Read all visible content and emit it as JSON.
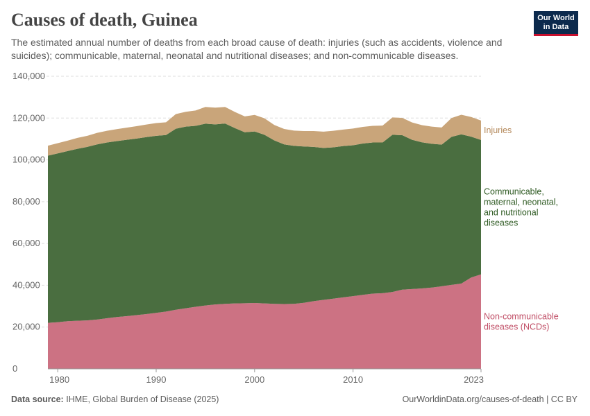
{
  "header": {
    "title": "Causes of death, Guinea",
    "subtitle": "The estimated annual number of deaths from each broad cause of death: injuries (such as accidents, violence and suicides); communicable, maternal, neonatal and nutritional diseases; and non-communicable diseases.",
    "logo_line1": "Our World",
    "logo_line2": "in Data"
  },
  "footer": {
    "source_label": "Data source:",
    "source_text": "IHME, Global Burden of Disease (2025)",
    "url": "OurWorldinData.org/causes-of-death | CC BY"
  },
  "colors": {
    "ncd": "#cc7283",
    "communicable": "#4a6e40",
    "injuries": "#c9a57a",
    "injuries_label": "#b4885a",
    "communicable_label": "#2e5a22",
    "ncd_label": "#c04d65"
  },
  "chart_data": {
    "type": "area",
    "stacked": true,
    "title": "Causes of death, Guinea",
    "xlabel": "",
    "ylabel": "",
    "xlim": [
      1979,
      2023
    ],
    "ylim": [
      0,
      140000
    ],
    "x_ticks": [
      1980,
      1990,
      2000,
      2010,
      2023
    ],
    "y_ticks": [
      0,
      20000,
      40000,
      60000,
      80000,
      100000,
      120000,
      140000
    ],
    "y_tick_labels": [
      "0",
      "20,000",
      "40,000",
      "60,000",
      "80,000",
      "100,000",
      "120,000",
      "140,000"
    ],
    "x": [
      1979,
      1980,
      1981,
      1982,
      1983,
      1984,
      1985,
      1986,
      1987,
      1988,
      1989,
      1990,
      1991,
      1992,
      1993,
      1994,
      1995,
      1996,
      1997,
      1998,
      1999,
      2000,
      2001,
      2002,
      2003,
      2004,
      2005,
      2006,
      2007,
      2008,
      2009,
      2010,
      2011,
      2012,
      2013,
      2014,
      2015,
      2016,
      2017,
      2018,
      2019,
      2020,
      2021,
      2022,
      2023
    ],
    "series": [
      {
        "name": "Non-communicable diseases (NCDs)",
        "label_lines": [
          "Non-communicable",
          "diseases (NCDs)"
        ],
        "values": [
          22000,
          22300,
          22800,
          23000,
          23200,
          23600,
          24200,
          24800,
          25200,
          25700,
          26200,
          26800,
          27400,
          28300,
          29000,
          29700,
          30300,
          30800,
          31100,
          31300,
          31400,
          31500,
          31300,
          31100,
          31000,
          31100,
          31600,
          32400,
          33000,
          33600,
          34200,
          34800,
          35400,
          36000,
          36200,
          36800,
          37900,
          38200,
          38500,
          38900,
          39500,
          40200,
          40800,
          43700,
          45200
        ]
      },
      {
        "name": "Communicable, maternal, neonatal, and nutritional diseases",
        "label_lines": [
          "Communicable,",
          "maternal, neonatal,",
          "and nutritional",
          "diseases"
        ],
        "values": [
          80000,
          80800,
          81400,
          82300,
          83000,
          83800,
          84100,
          84200,
          84400,
          84500,
          84700,
          84700,
          84500,
          86600,
          86900,
          86600,
          87000,
          86200,
          86300,
          83900,
          81800,
          82100,
          80700,
          78200,
          76400,
          75600,
          74800,
          73800,
          72700,
          72400,
          72400,
          72200,
          72400,
          72300,
          72100,
          75200,
          73900,
          71400,
          69900,
          68800,
          67800,
          70800,
          71400,
          67400,
          64300
        ]
      },
      {
        "name": "Injuries",
        "label_lines": [
          "Injuries"
        ],
        "values": [
          4800,
          4900,
          5000,
          5200,
          5300,
          5500,
          5600,
          5700,
          5800,
          5900,
          6000,
          6100,
          6100,
          7000,
          7100,
          7300,
          8000,
          8000,
          7900,
          7700,
          7600,
          7900,
          7900,
          7400,
          7400,
          7300,
          7400,
          7600,
          7800,
          7900,
          7900,
          8000,
          8000,
          8000,
          8100,
          8300,
          8300,
          8300,
          8200,
          8200,
          8200,
          9000,
          9400,
          9400,
          9300
        ]
      }
    ]
  }
}
